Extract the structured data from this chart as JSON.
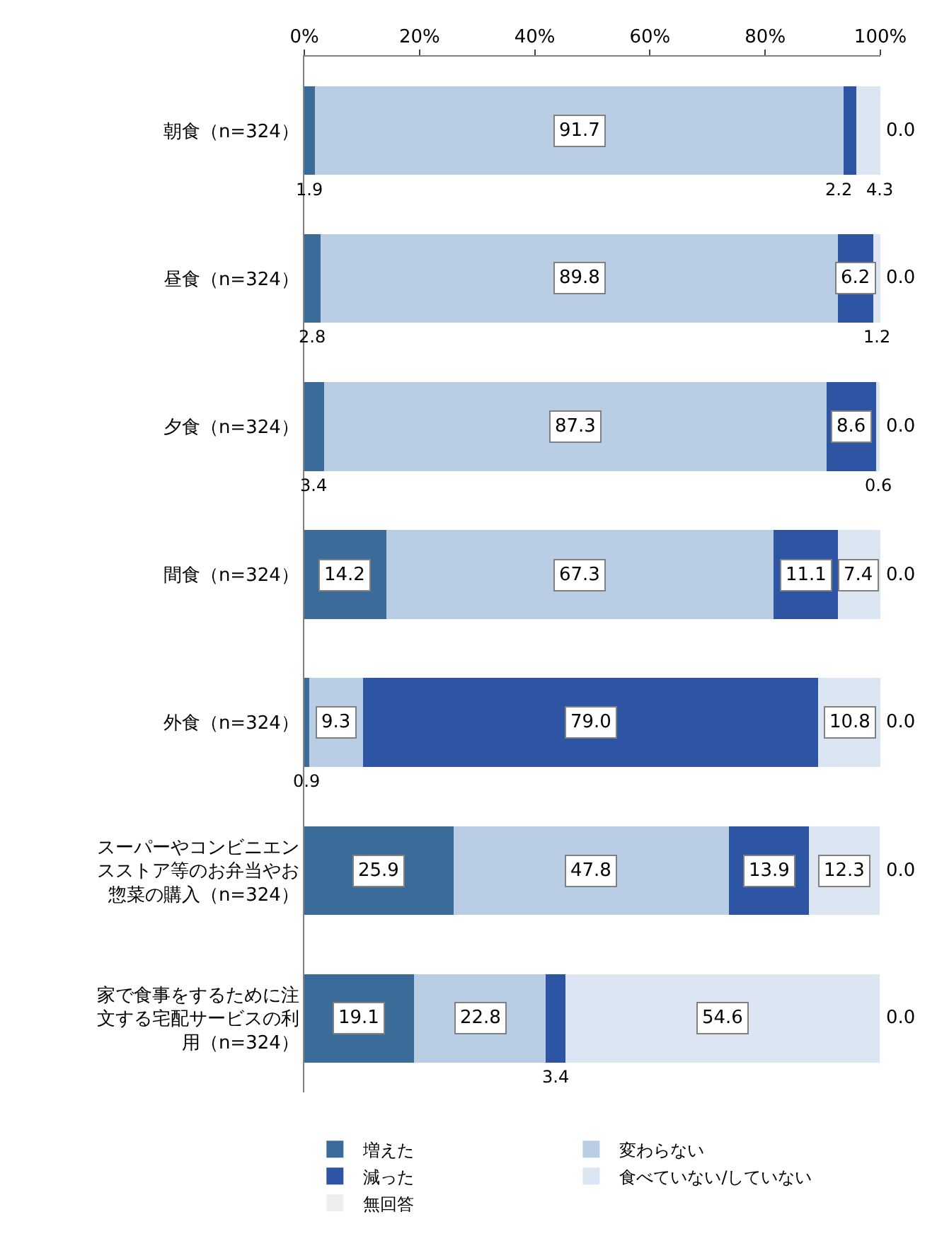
{
  "chart_data": {
    "type": "bar",
    "orientation": "horizontal",
    "stacked": true,
    "categories": [
      "朝食（n=324）",
      "昼食（n=324）",
      "夕食（n=324）",
      "間食（n=324）",
      "外食（n=324）",
      "スーパーやコンビニエンスストア等のお弁当やお惣菜の購入（n=324）",
      "家で食事をするために注文する宅配サービスの利用（n=324）"
    ],
    "series": [
      {
        "name": "増えた",
        "color": "#3b6b98",
        "values": [
          1.9,
          2.8,
          3.4,
          14.2,
          0.9,
          25.9,
          19.1
        ],
        "value_labels": [
          "1.9",
          "2.8",
          "3.4",
          "14.2",
          "0.9",
          "25.9",
          "19.1"
        ]
      },
      {
        "name": "変わらない",
        "color": "#b9cde5",
        "values": [
          91.7,
          89.8,
          87.3,
          67.3,
          9.3,
          47.8,
          22.8
        ],
        "value_labels": [
          "91.7",
          "89.8",
          "87.3",
          "67.3",
          "9.3",
          "47.8",
          "22.8"
        ]
      },
      {
        "name": "減った",
        "color": "#2e55a3",
        "values": [
          2.2,
          6.2,
          8.6,
          11.1,
          79.0,
          13.9,
          3.4
        ],
        "value_labels": [
          "2.2",
          "6.2",
          "8.6",
          "11.1",
          "79.0",
          "13.9",
          "3.4"
        ]
      },
      {
        "name": "食べていない/していない",
        "color": "#dce6f2",
        "values": [
          4.3,
          1.2,
          0.6,
          7.4,
          10.8,
          12.3,
          54.6
        ],
        "value_labels": [
          "4.3",
          "1.2",
          "0.6",
          "7.4",
          "10.8",
          "12.3",
          "54.6"
        ]
      },
      {
        "name": "無回答",
        "color": "#eeeeee",
        "values": [
          0.0,
          0.0,
          0.0,
          0.0,
          0.0,
          0.0,
          0.0
        ],
        "value_labels": [
          "0.0",
          "0.0",
          "0.0",
          "0.0",
          "0.0",
          "0.0",
          "0.0"
        ]
      }
    ],
    "xlim": [
      0,
      100
    ],
    "xticks": [
      {
        "value": 0,
        "label": "0%"
      },
      {
        "value": 20,
        "label": "20%"
      },
      {
        "value": 40,
        "label": "40%"
      },
      {
        "value": 60,
        "label": "60%"
      },
      {
        "value": 80,
        "label": "80%"
      },
      {
        "value": 100,
        "label": "100%"
      }
    ],
    "grid": false,
    "legend": "bottom"
  }
}
